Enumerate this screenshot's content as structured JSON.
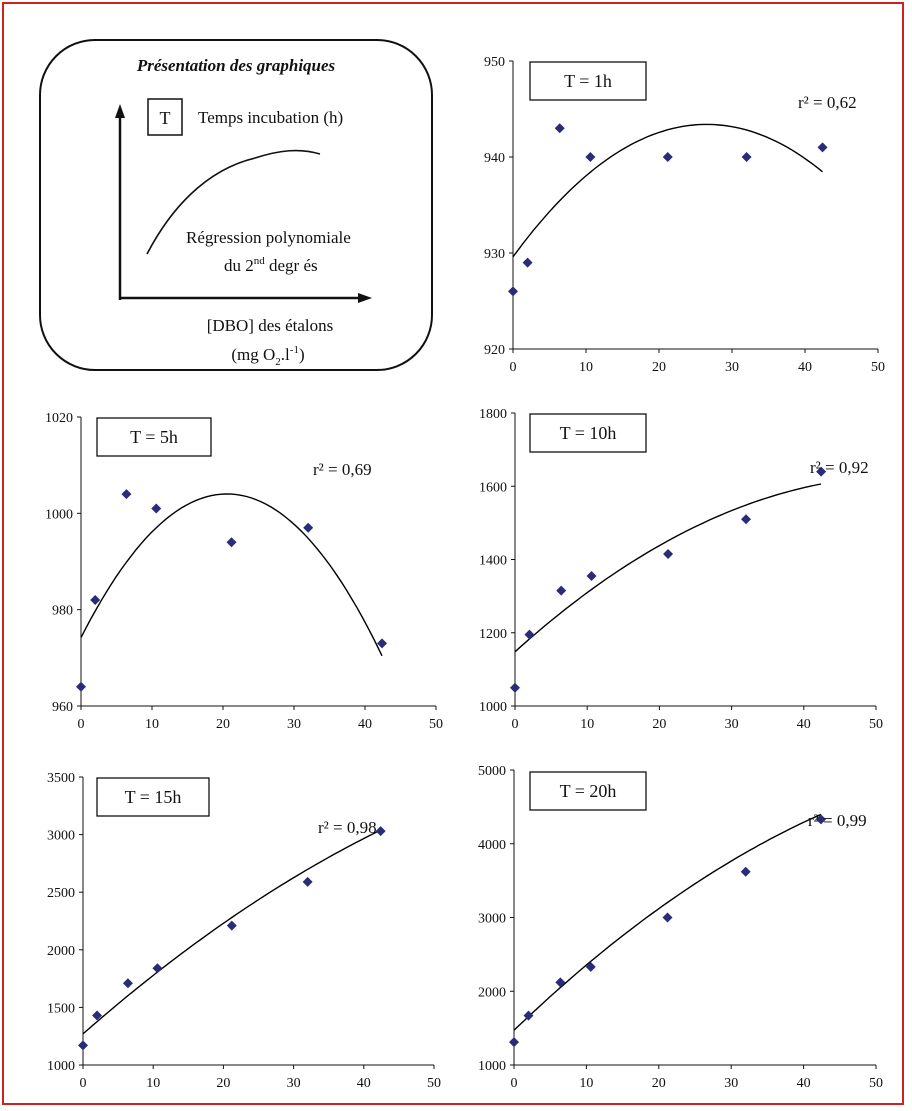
{
  "legend_panel": {
    "title": "Présentation des graphiques",
    "box_letter": "T",
    "box_desc": "Temps incubation (h)",
    "curve_desc_1": "Régression polynomiale",
    "curve_desc_2_prefix": "du 2",
    "curve_desc_2_sup": "nd",
    "curve_desc_2_suffix": " degr és",
    "xlabel_1": "[DBO] des  étalons",
    "xlabel_2_prefix": "(mg O",
    "xlabel_2_sub": "2",
    "xlabel_2_mid": ".l",
    "xlabel_2_sup": "-1",
    "xlabel_2_suffix": ")"
  },
  "colors": {
    "frame": "#cc2222",
    "marker": "#2b2b7a",
    "line": "#000000"
  },
  "chart_data": [
    {
      "type": "scatter",
      "panel_label": "T = 1h",
      "r2_label": "r² = 0,62",
      "ylim": [
        920,
        950
      ],
      "yticks": [
        920,
        930,
        940,
        950
      ],
      "xlim": [
        0,
        50
      ],
      "xticks": [
        0,
        10,
        20,
        30,
        40,
        50
      ],
      "points": [
        [
          0,
          926
        ],
        [
          2,
          929
        ],
        [
          6.4,
          943
        ],
        [
          10.6,
          940
        ],
        [
          21.2,
          940
        ],
        [
          32,
          940
        ],
        [
          42.4,
          941
        ]
      ],
      "fit_coeffs": [
        929.6,
        1.04,
        -0.0196
      ],
      "fit_range": [
        0,
        42.4
      ]
    },
    {
      "type": "scatter",
      "panel_label": "T = 5h",
      "r2_label": "r² = 0,69",
      "ylim": [
        960,
        1020
      ],
      "yticks": [
        960,
        980,
        1000,
        1020
      ],
      "xlim": [
        0,
        50
      ],
      "xticks": [
        0,
        10,
        20,
        30,
        40,
        50
      ],
      "points": [
        [
          0,
          964
        ],
        [
          2,
          982
        ],
        [
          6.4,
          1004
        ],
        [
          10.6,
          1001
        ],
        [
          21.2,
          994
        ],
        [
          32,
          997
        ],
        [
          42.4,
          973
        ]
      ],
      "fit_coeffs": [
        974.2,
        2.9,
        -0.0705
      ],
      "fit_range": [
        0,
        42.4
      ]
    },
    {
      "type": "scatter",
      "panel_label": "T = 10h",
      "r2_label": "r² = 0,92",
      "ylim": [
        1000,
        1800
      ],
      "yticks": [
        1000,
        1200,
        1400,
        1600,
        1800
      ],
      "xlim": [
        0,
        50
      ],
      "xticks": [
        0,
        10,
        20,
        30,
        40,
        50
      ],
      "points": [
        [
          0,
          1050
        ],
        [
          2,
          1195
        ],
        [
          6.4,
          1315
        ],
        [
          10.6,
          1355
        ],
        [
          21.2,
          1415
        ],
        [
          32,
          1510
        ],
        [
          42.4,
          1640
        ]
      ],
      "fit_coeffs": [
        1148,
        17.8,
        -0.165
      ],
      "fit_range": [
        0,
        42.4
      ]
    },
    {
      "type": "scatter",
      "panel_label": "T = 15h",
      "r2_label": "r² = 0,98",
      "ylim": [
        1000,
        3500
      ],
      "yticks": [
        1000,
        1500,
        2000,
        2500,
        3000,
        3500
      ],
      "xlim": [
        0,
        50
      ],
      "xticks": [
        0,
        10,
        20,
        30,
        40,
        50
      ],
      "points": [
        [
          0,
          1170
        ],
        [
          2,
          1430
        ],
        [
          6.4,
          1710
        ],
        [
          10.6,
          1840
        ],
        [
          21.2,
          2210
        ],
        [
          32,
          2590
        ],
        [
          42.4,
          3030
        ]
      ],
      "fit_coeffs": [
        1270,
        53.6,
        -0.28
      ],
      "fit_range": [
        0,
        42.4
      ]
    },
    {
      "type": "scatter",
      "panel_label": "T = 20h",
      "r2_label": "r² = 0,99",
      "ylim": [
        1000,
        5000
      ],
      "yticks": [
        1000,
        2000,
        3000,
        4000,
        5000
      ],
      "xlim": [
        0,
        50
      ],
      "xticks": [
        0,
        10,
        20,
        30,
        40,
        50
      ],
      "points": [
        [
          0,
          1310
        ],
        [
          2,
          1670
        ],
        [
          6.4,
          2120
        ],
        [
          10.6,
          2330
        ],
        [
          21.2,
          3000
        ],
        [
          32,
          3620
        ],
        [
          42.4,
          4330
        ]
      ],
      "fit_coeffs": [
        1470,
        94.5,
        -0.6
      ],
      "fit_range": [
        0,
        42.4
      ]
    }
  ]
}
